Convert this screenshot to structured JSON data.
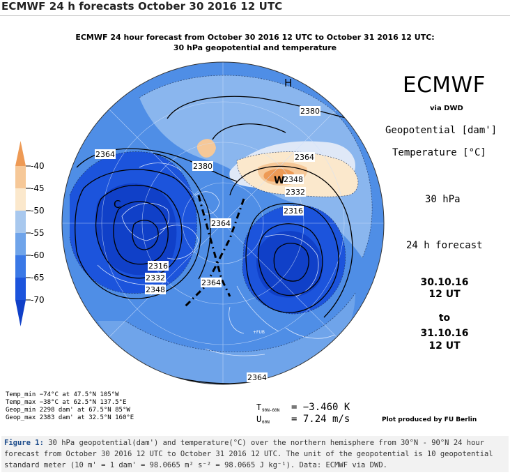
{
  "page_title": "ECMWF 24 h forecasts October 30 2016 12 UTC",
  "chart_title_line1": "ECMWF 24 hour forecast from October 30 2016 12 UTC to October 31 2016 12 UTC:",
  "chart_title_line2": "30 hPa geopotential and temperature",
  "brand": "ECMWF",
  "via": "via DWD",
  "geopotential_label": "Geopotential [dam']",
  "temperature_label": "Temperature [°C]",
  "level": "30 hPa",
  "forecast": "24 h forecast",
  "start_date": "30.10.16",
  "start_time": "12 UT",
  "to": "to",
  "end_date": "31.10.16",
  "end_time": "12 UT",
  "legend": {
    "ticks": [
      "-40",
      "-45",
      "-50",
      "-55",
      "-60",
      "-65",
      "-70"
    ],
    "colors": [
      "#ee9a55",
      "#f6c898",
      "#fbe8cc",
      "#a8c8ee",
      "#6fa4ea",
      "#3a78e6",
      "#1c54dc",
      "#1040c8"
    ]
  },
  "stats": {
    "temp_min": "Temp_min −74°C at 47.5°N 105°W",
    "temp_max": "Temp_max −38°C at 62.5°N 137.5°E",
    "geop_min": "Geop_min 2298 dam' at 67.5°N 85°W",
    "geop_max": "Geop_max 2383 dam' at 32.5°N 160°E"
  },
  "metrics": {
    "t_label": "T",
    "t_sub": "90N-60N",
    "t_value": "= −3.460 K",
    "u_label": "U",
    "u_sub": "60N",
    "u_value": "= 7.24 m/s"
  },
  "credit": "Plot produced by FU Berlin",
  "caption": {
    "label": "Figure 1:",
    "text": "30 hPa geopotential(dam') and temperature(°C) over the northern hemisphere from 30°N - 90°N 24 hour forecast from October 30 2016 12 UTC to October 31 2016 12 UTC. The unit of the geopotential is 10 geopotential standard meter (10 m' = 1 dam' = 98.0665 m² s⁻² = 98.0665 J kg⁻¹). Data: ECMWF via DWD."
  },
  "map": {
    "high_label": "H",
    "cold_label": "C",
    "warm_label": "W",
    "fub_label": "+FUB",
    "contour_labels": [
      "2364",
      "2380",
      "2364",
      "2380",
      "2348",
      "2332",
      "2316",
      "2364",
      "2316",
      "2332",
      "2348",
      "2364",
      "2364"
    ]
  }
}
